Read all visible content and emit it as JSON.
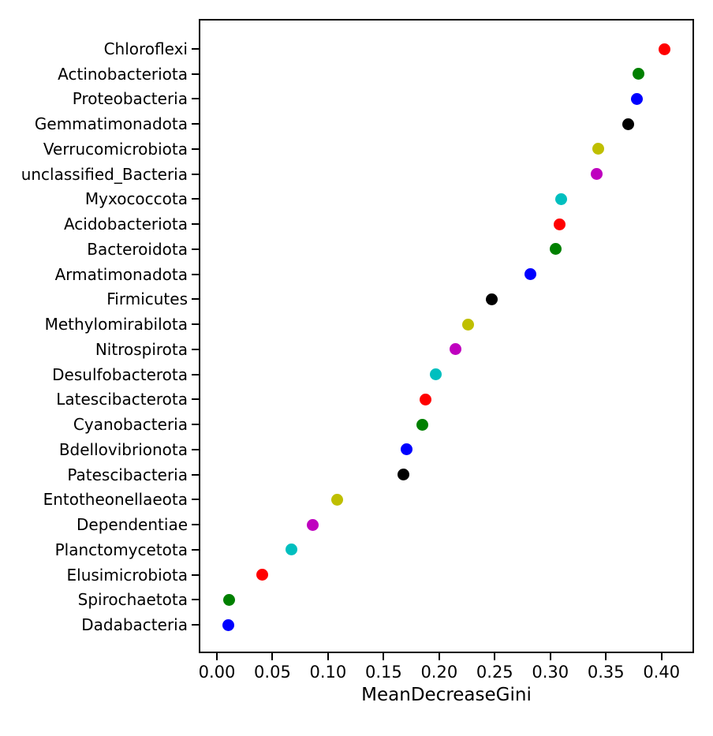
{
  "chart_data": {
    "type": "scatter",
    "title": "",
    "xlabel": "MeanDecreaseGini",
    "ylabel": "",
    "grid": false,
    "legend_position": "none",
    "xlim": [
      -0.0163,
      0.4293
    ],
    "x_ticks": [
      0.0,
      0.05,
      0.1,
      0.15,
      0.2,
      0.25,
      0.3,
      0.35,
      0.4
    ],
    "x_tick_labels": [
      "0.00",
      "0.05",
      "0.10",
      "0.15",
      "0.20",
      "0.25",
      "0.30",
      "0.35",
      "0.40"
    ],
    "color_cycle": [
      "#ff0000",
      "#008000",
      "#0000ff",
      "#000000",
      "#bfbf00",
      "#bf00bf",
      "#00bfbf"
    ],
    "points": [
      {
        "label": "Chloroflexi",
        "value": 0.403,
        "color": "#ff0000"
      },
      {
        "label": "Actinobacteriota",
        "value": 0.379,
        "color": "#008000"
      },
      {
        "label": "Proteobacteria",
        "value": 0.378,
        "color": "#0000ff"
      },
      {
        "label": "Gemmatimonadota",
        "value": 0.37,
        "color": "#000000"
      },
      {
        "label": "Verrucomicrobiota",
        "value": 0.343,
        "color": "#bfbf00"
      },
      {
        "label": "unclassified_Bacteria",
        "value": 0.342,
        "color": "#bf00bf"
      },
      {
        "label": "Myxococcota",
        "value": 0.31,
        "color": "#00bfbf"
      },
      {
        "label": "Acidobacteriota",
        "value": 0.308,
        "color": "#ff0000"
      },
      {
        "label": "Bacteroidota",
        "value": 0.305,
        "color": "#008000"
      },
      {
        "label": "Armatimonadota",
        "value": 0.282,
        "color": "#0000ff"
      },
      {
        "label": "Firmicutes",
        "value": 0.247,
        "color": "#000000"
      },
      {
        "label": "Methylomirabilota",
        "value": 0.226,
        "color": "#bfbf00"
      },
      {
        "label": "Nitrospirota",
        "value": 0.215,
        "color": "#bf00bf"
      },
      {
        "label": "Desulfobacterota",
        "value": 0.197,
        "color": "#00bfbf"
      },
      {
        "label": "Latescibacterota",
        "value": 0.188,
        "color": "#ff0000"
      },
      {
        "label": "Cyanobacteria",
        "value": 0.185,
        "color": "#008000"
      },
      {
        "label": "Bdellovibrionota",
        "value": 0.171,
        "color": "#0000ff"
      },
      {
        "label": "Patescibacteria",
        "value": 0.168,
        "color": "#000000"
      },
      {
        "label": "Entotheonellaeota",
        "value": 0.108,
        "color": "#bfbf00"
      },
      {
        "label": "Dependentiae",
        "value": 0.086,
        "color": "#bf00bf"
      },
      {
        "label": "Planctomycetota",
        "value": 0.067,
        "color": "#00bfbf"
      },
      {
        "label": "Elusimicrobiota",
        "value": 0.041,
        "color": "#ff0000"
      },
      {
        "label": "Spirochaetota",
        "value": 0.011,
        "color": "#008000"
      },
      {
        "label": "Dadabacteria",
        "value": 0.01,
        "color": "#0000ff"
      }
    ]
  }
}
